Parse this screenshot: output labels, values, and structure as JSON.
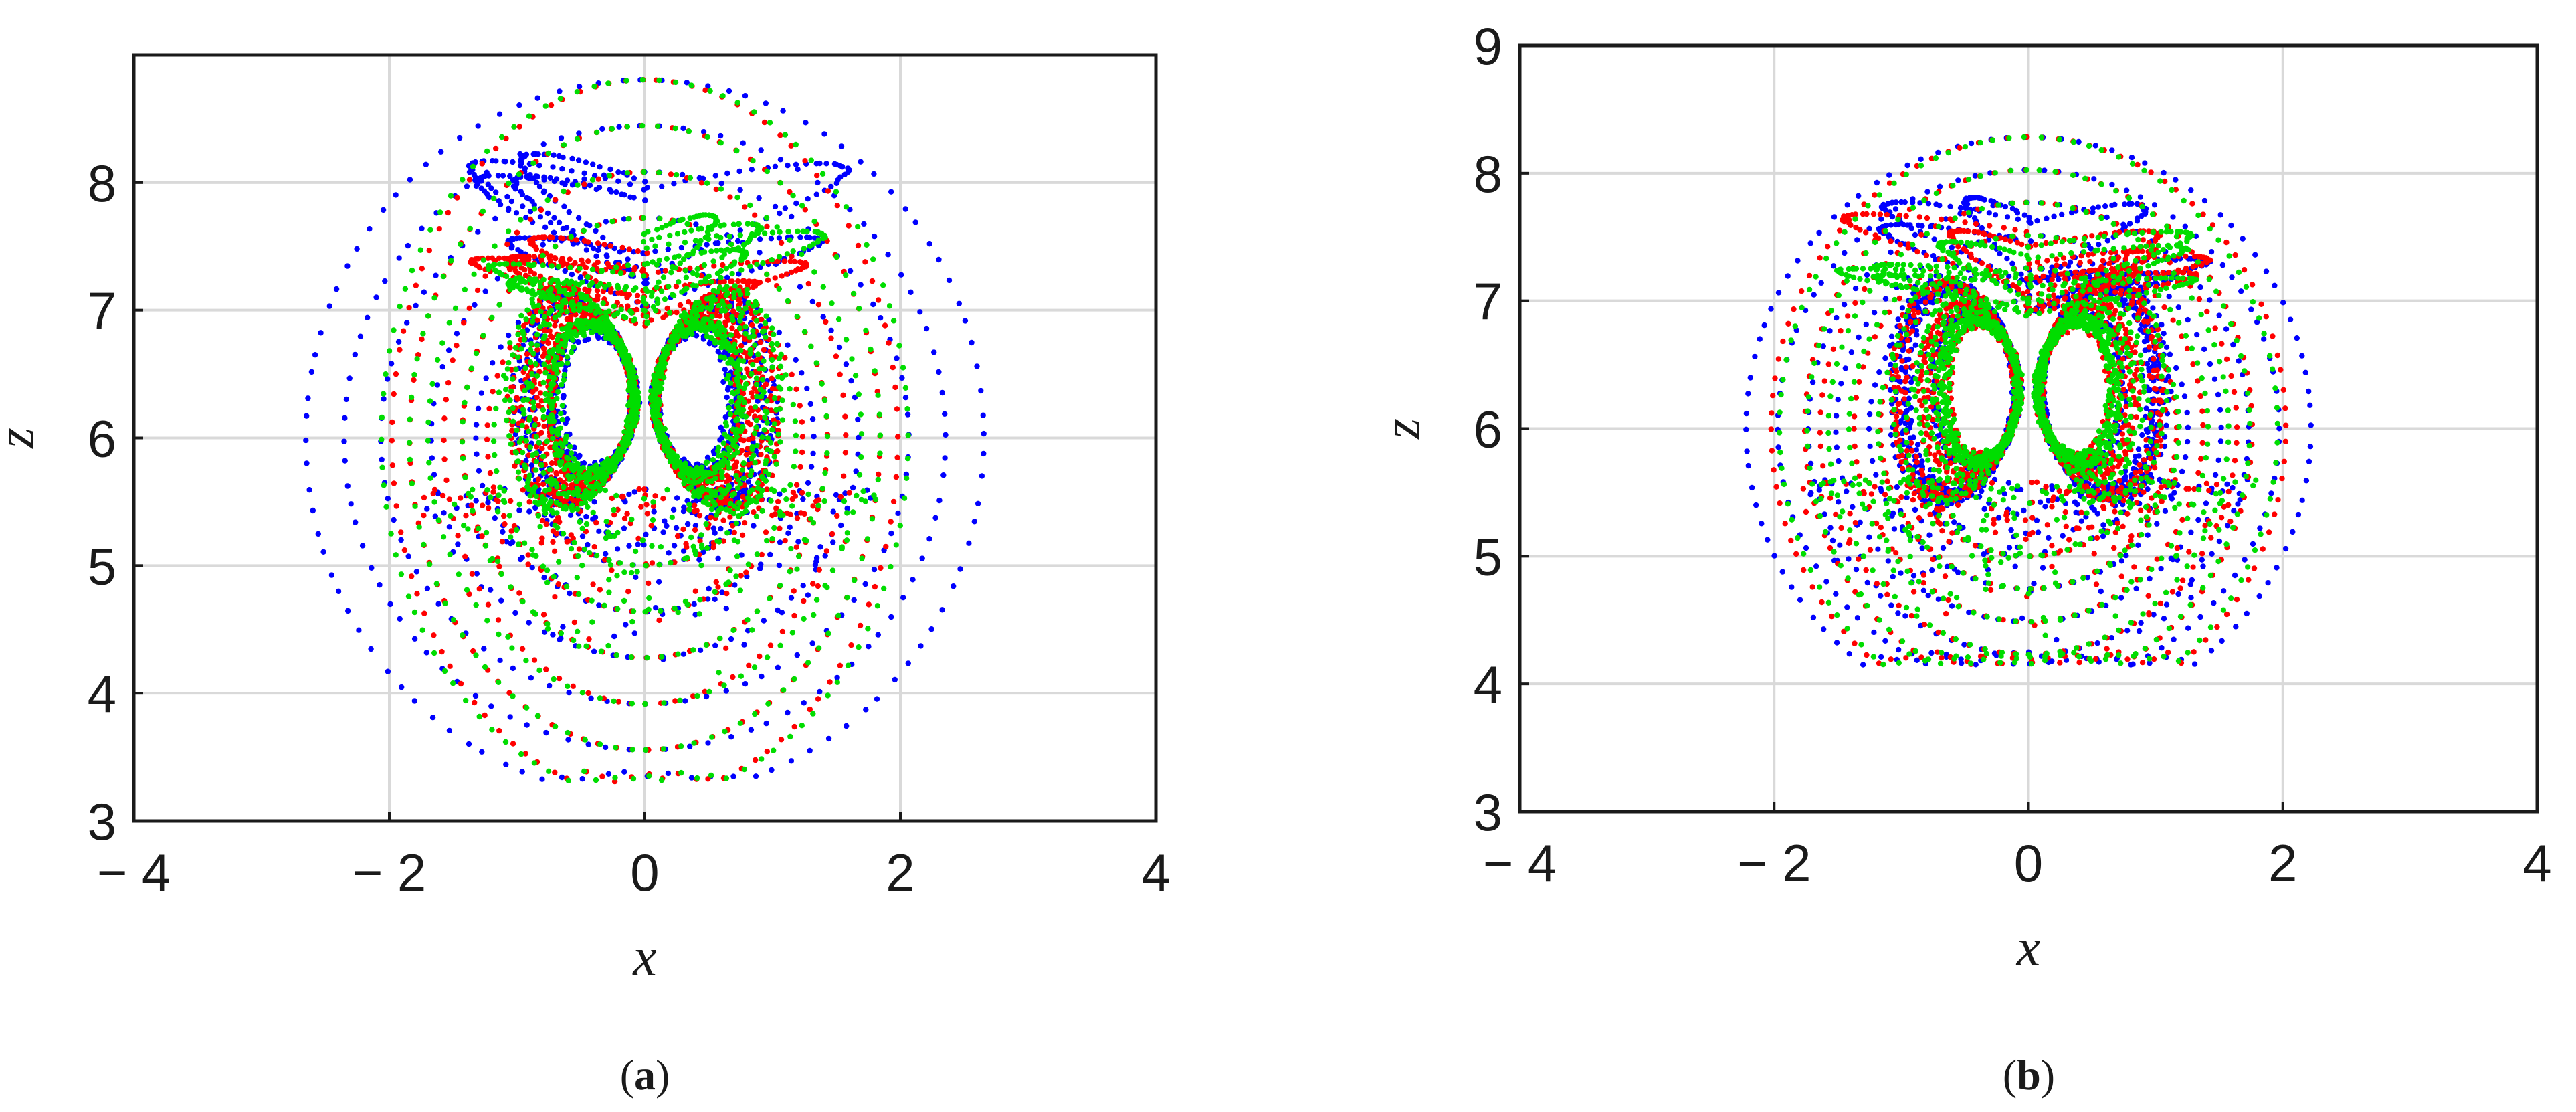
{
  "chart_data": [
    {
      "type": "scatter",
      "panel_label": "a",
      "xlabel": "x",
      "ylabel": "z",
      "xlim": [
        -4,
        4
      ],
      "ylim": [
        3,
        9
      ],
      "xticks": [
        -4,
        -2,
        0,
        2,
        4
      ],
      "yticks": [
        3,
        4,
        5,
        6,
        7,
        8
      ],
      "xtick_labels": [
        "− 4",
        "− 2",
        "0",
        "2",
        "4"
      ],
      "ytick_labels": [
        "3",
        "4",
        "5",
        "6",
        "7",
        "8"
      ],
      "grid": true,
      "series": [
        {
          "color": "#0000ff",
          "seed": 11,
          "outer_radius": 2.7,
          "overshoot_top": 8.7
        },
        {
          "color": "#ff0000",
          "seed": 23,
          "outer_radius": 2.0,
          "overshoot_top": 8.1
        },
        {
          "color": "#00dd00",
          "seed": 37,
          "outer_radius": 2.1,
          "overshoot_top": 8.1
        }
      ],
      "attractor": {
        "center_x": 0,
        "center_z": 6.3,
        "lobe_offset": 0.55,
        "lobe_radius_x": 0.45,
        "lobe_radius_z": 0.8,
        "outer_z_min": 3.3,
        "outer_z_max": 8.7
      }
    },
    {
      "type": "scatter",
      "panel_label": "b",
      "xlabel": "x",
      "ylabel": "z",
      "xlim": [
        -4,
        4
      ],
      "ylim": [
        3,
        9
      ],
      "xticks": [
        -4,
        -2,
        0,
        2,
        4
      ],
      "yticks": [
        3,
        4,
        5,
        6,
        7,
        8,
        9
      ],
      "xtick_labels": [
        "− 4",
        "− 2",
        "0",
        "2",
        "4"
      ],
      "ytick_labels": [
        "3",
        "4",
        "5",
        "6",
        "7",
        "8",
        "9"
      ],
      "grid": true,
      "series": [
        {
          "color": "#0000ff",
          "seed": 41,
          "outer_radius": 2.2,
          "overshoot_top": 8.15
        },
        {
          "color": "#ff0000",
          "seed": 53,
          "outer_radius": 2.0,
          "overshoot_top": 8.1
        },
        {
          "color": "#00dd00",
          "seed": 67,
          "outer_radius": 1.95,
          "overshoot_top": 8.0
        }
      ],
      "attractor": {
        "center_x": 0,
        "center_z": 6.3,
        "lobe_offset": 0.55,
        "lobe_radius_x": 0.45,
        "lobe_radius_z": 0.8,
        "outer_z_min": 4.15,
        "outer_z_max": 8.15
      }
    }
  ]
}
